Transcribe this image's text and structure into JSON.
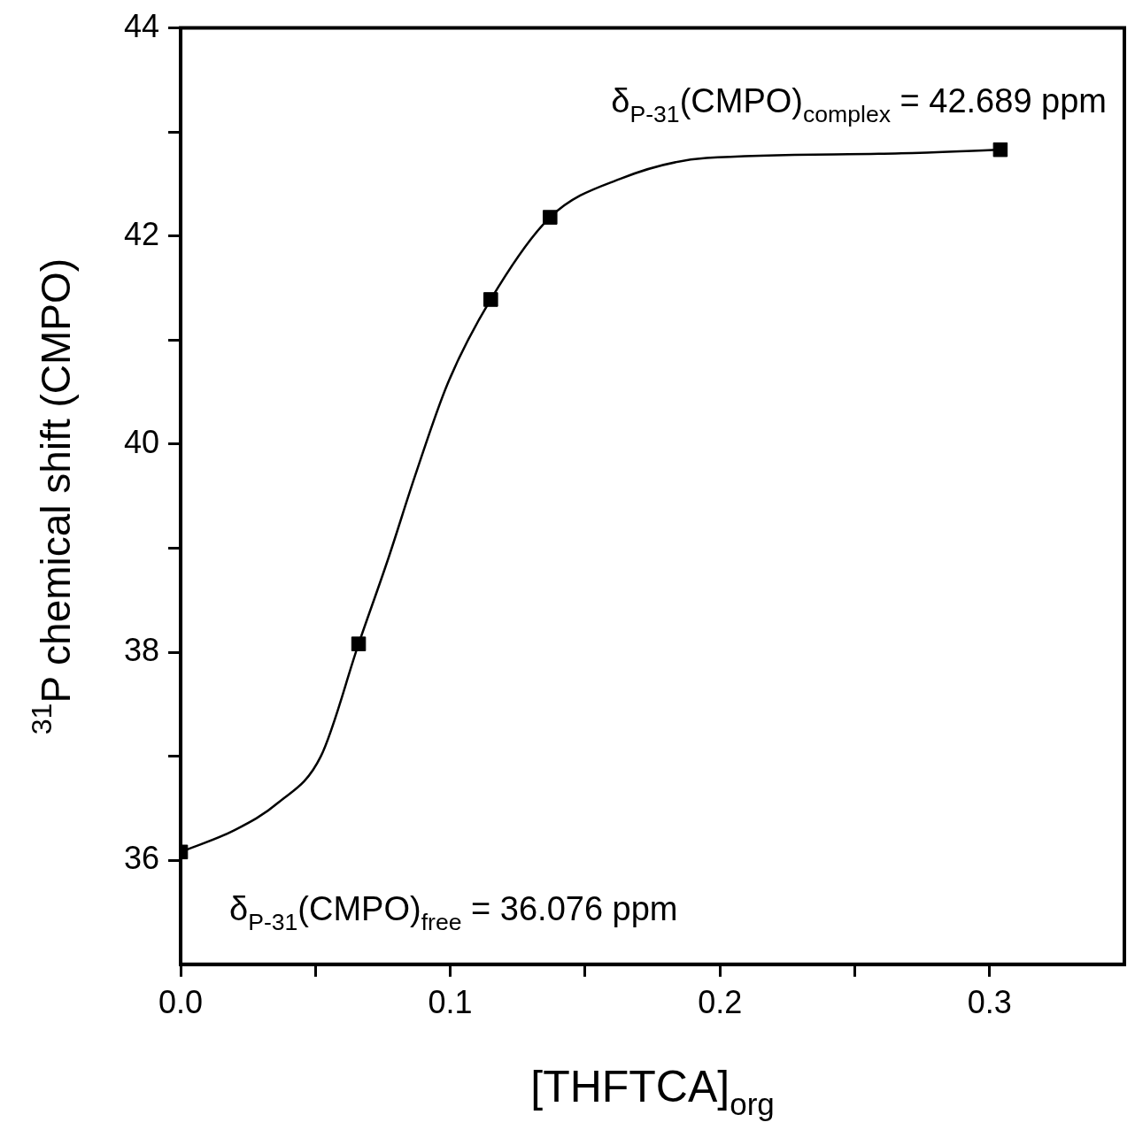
{
  "chart_data": {
    "type": "scatter",
    "xlabel": "[THFTCA]$_{org}$",
    "ylabel": "$^{31}$P chemical shift (CMPO)",
    "xlim": [
      0,
      0.35
    ],
    "ylim": [
      35,
      44
    ],
    "xticks": [
      {
        "value": 0,
        "label": "0.0"
      },
      {
        "value": 0.05,
        "label": null
      },
      0.1,
      {
        "value": 0.15,
        "label": null
      },
      0.2,
      {
        "value": 0.25,
        "label": null
      },
      0.3
    ],
    "yticks": [
      36,
      {
        "value": 37,
        "label": null
      },
      38,
      {
        "value": 39,
        "label": null
      },
      40,
      {
        "value": 41,
        "label": null
      },
      42,
      {
        "value": 43,
        "label": null
      },
      44
    ],
    "grid": false,
    "legend": false,
    "marker": "square",
    "series": [
      {
        "type": "scatter",
        "color": "#000000",
        "x": [
          0,
          0.066,
          0.115,
          0.137,
          0.304
        ],
        "values": [
          36.08,
          38.08,
          41.39,
          42.18,
          42.83
        ]
      },
      {
        "type": "line",
        "color": "#000000",
        "marker": "none",
        "line_style": "solid",
        "x": [
          0,
          0.02,
          0.036,
          0.052,
          0.066,
          0.077,
          0.087,
          0.099,
          0.115,
          0.137,
          0.163,
          0.195,
          0.259,
          0.304
        ],
        "values": [
          36.08,
          36.29,
          36.55,
          37.0,
          38.08,
          38.9,
          39.7,
          40.58,
          41.39,
          42.18,
          42.55,
          42.75,
          42.79,
          42.83
        ]
      }
    ],
    "annotations": [
      "δ$_{P-31}$(CMPO)$_{complex}$ = 42.689 ppm",
      "δ$_{P-31}$(CMPO)$_{free}$ = 36.076 ppm"
    ]
  }
}
